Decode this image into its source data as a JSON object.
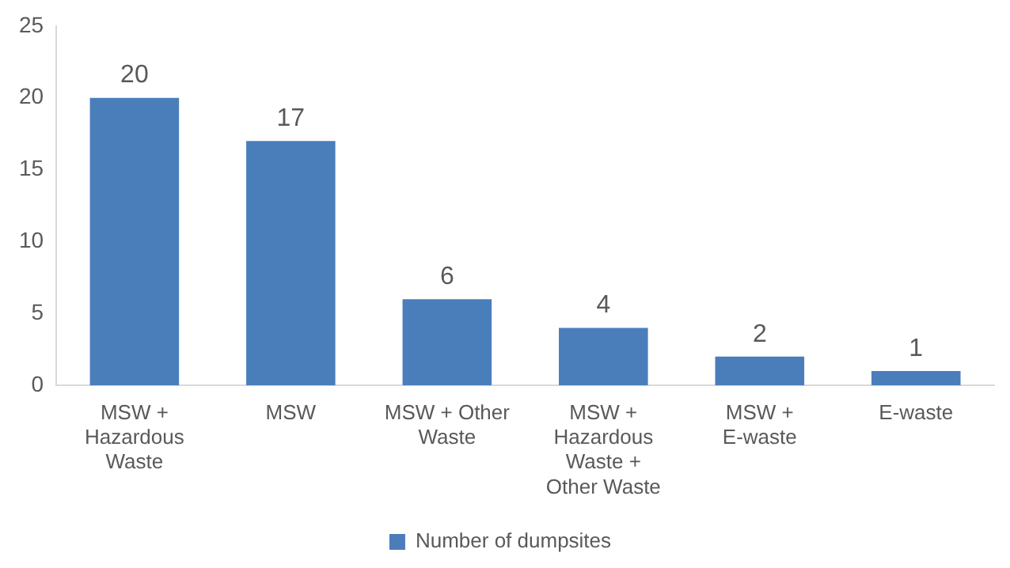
{
  "chart_data": {
    "type": "bar",
    "categories": [
      "MSW + Hazardous Waste",
      "MSW",
      "MSW + Other Waste",
      "MSW + Hazardous Waste + Other Waste",
      "MSW + E-waste",
      "E-waste"
    ],
    "series": [
      {
        "name": "Number of dumpsites",
        "color": "#4a7ebb",
        "values": [
          20,
          17,
          6,
          4,
          2,
          1
        ]
      }
    ],
    "ylim": [
      0,
      25
    ],
    "yticks": [
      0,
      5,
      10,
      15,
      20,
      25
    ],
    "grid": false,
    "legend": "bottom",
    "data_labels": true
  }
}
